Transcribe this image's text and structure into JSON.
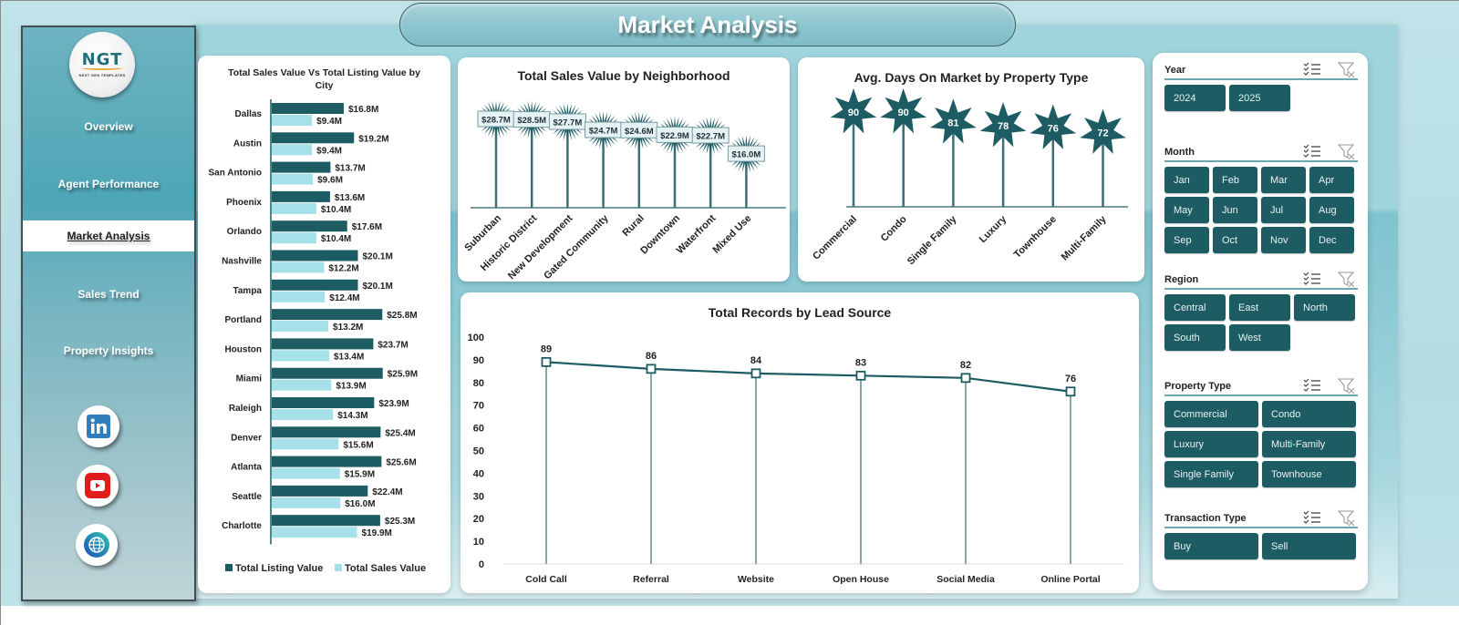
{
  "header": {
    "title": "Market Analysis"
  },
  "sidebar": {
    "logo": {
      "text": "NGT",
      "subtext": "NEXT GEN TEMPLATES"
    },
    "items": [
      {
        "label": "Overview",
        "active": false
      },
      {
        "label": "Agent Performance",
        "active": false
      },
      {
        "label": "Market Analysis",
        "active": true
      },
      {
        "label": "Sales Trend",
        "active": false
      },
      {
        "label": "Property Insights",
        "active": false
      }
    ],
    "social": [
      {
        "icon": "linkedin-icon",
        "label": "in"
      },
      {
        "icon": "youtube-icon",
        "label": "YouTube"
      },
      {
        "icon": "globe-icon",
        "label": "Website"
      }
    ]
  },
  "colors": {
    "dark_teal": "#1e5c63",
    "light_teal": "#a6e1ea",
    "stem": "#4a7a80",
    "accent_line": "#6aa7ae"
  },
  "chart_data": [
    {
      "id": "city_chart",
      "type": "bar",
      "orientation": "horizontal",
      "title": "Total Sales Value Vs Total Listing Value by City",
      "categories": [
        "Dallas",
        "Austin",
        "San Antonio",
        "Phoenix",
        "Orlando",
        "Nashville",
        "Tampa",
        "Portland",
        "Houston",
        "Miami",
        "Raleigh",
        "Denver",
        "Atlanta",
        "Seattle",
        "Charlotte"
      ],
      "series": [
        {
          "name": "Total Listing Value",
          "color": "#1e5c63",
          "values": [
            16.8,
            19.2,
            13.7,
            13.6,
            17.6,
            20.1,
            20.1,
            25.8,
            23.7,
            25.9,
            23.9,
            25.4,
            25.6,
            22.4,
            25.3
          ],
          "labels": [
            "$16.8M",
            "$19.2M",
            "$13.7M",
            "$13.6M",
            "$17.6M",
            "$20.1M",
            "$20.1M",
            "$25.8M",
            "$23.7M",
            "$25.9M",
            "$23.9M",
            "$25.4M",
            "$25.6M",
            "$22.4M",
            "$25.3M"
          ]
        },
        {
          "name": "Total Sales Value",
          "color": "#a6e1ea",
          "values": [
            9.4,
            9.4,
            9.6,
            10.4,
            10.4,
            12.2,
            12.4,
            13.2,
            13.4,
            13.9,
            14.3,
            15.6,
            15.9,
            16.0,
            19.9
          ],
          "labels": [
            "$9.4M",
            "$9.4M",
            "$9.6M",
            "$10.4M",
            "$10.4M",
            "$12.2M",
            "$12.4M",
            "$13.2M",
            "$13.4M",
            "$13.9M",
            "$14.3M",
            "$15.6M",
            "$15.9M",
            "$16.0M",
            "$19.9M"
          ]
        }
      ],
      "legend_position": "bottom",
      "unit": "$M"
    },
    {
      "id": "neighborhood_chart",
      "type": "bar",
      "style": "lollipop-starburst",
      "title": "Total Sales Value by Neighborhood",
      "categories": [
        "Suburban",
        "Historic District",
        "New Development",
        "Gated Community",
        "Rural",
        "Downtown",
        "Waterfront",
        "Mixed Use"
      ],
      "values": [
        28.7,
        28.5,
        27.7,
        24.7,
        24.6,
        22.9,
        22.7,
        16.0
      ],
      "labels": [
        "$28.7M",
        "$28.5M",
        "$27.7M",
        "$24.7M",
        "$24.6M",
        "$22.9M",
        "$22.7M",
        "$16.0M"
      ],
      "unit": "$M"
    },
    {
      "id": "days_chart",
      "type": "bar",
      "style": "lollipop-star",
      "title": "Avg. Days On Market by Property Type",
      "categories": [
        "Commercial",
        "Condo",
        "Single Family",
        "Luxury",
        "Townhouse",
        "Multi-Family"
      ],
      "values": [
        90,
        90,
        81,
        78,
        76,
        72
      ]
    },
    {
      "id": "lead_chart",
      "type": "line",
      "title": "Total Records by Lead Source",
      "categories": [
        "Cold Call",
        "Referral",
        "Website",
        "Open House",
        "Social Media",
        "Online Portal"
      ],
      "values": [
        89,
        86,
        84,
        83,
        82,
        76
      ],
      "ylim": [
        0,
        100
      ],
      "yticks": [
        0,
        10,
        20,
        30,
        40,
        50,
        60,
        70,
        80,
        90,
        100
      ],
      "grid": false,
      "markers": "square",
      "drop_lines": true
    }
  ],
  "slicers": [
    {
      "label": "Year",
      "options": [
        "2024",
        "2025"
      ]
    },
    {
      "label": "Month",
      "options": [
        "Jan",
        "Feb",
        "Mar",
        "Apr",
        "May",
        "Jun",
        "Jul",
        "Aug",
        "Sep",
        "Oct",
        "Nov",
        "Dec"
      ]
    },
    {
      "label": "Region",
      "options": [
        "Central",
        "East",
        "North",
        "South",
        "West"
      ]
    },
    {
      "label": "Property Type",
      "options": [
        "Commercial",
        "Condo",
        "Luxury",
        "Multi-Family",
        "Single Family",
        "Townhouse"
      ]
    },
    {
      "label": "Transaction Type",
      "options": [
        "Buy",
        "Sell"
      ]
    }
  ]
}
